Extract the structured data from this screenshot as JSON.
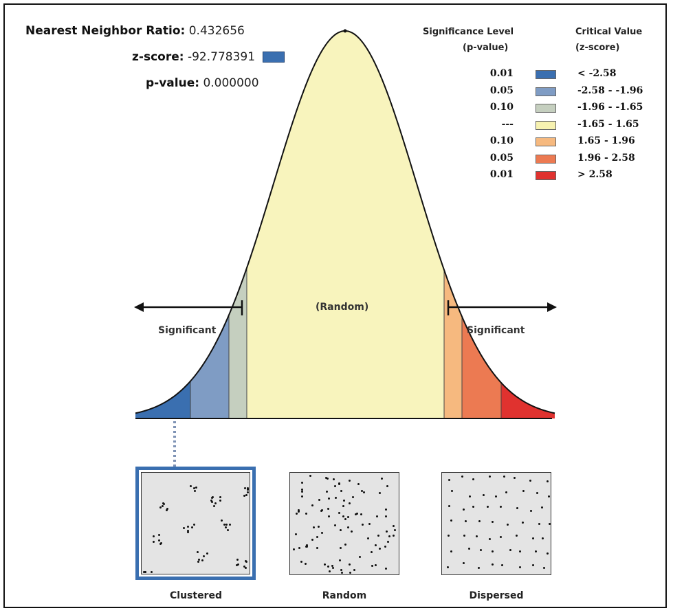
{
  "stats": {
    "nnr_label": "Nearest Neighbor Ratio:",
    "nnr_value": "0.432656",
    "z_label": "z-score:",
    "z_value": "-92.778391",
    "p_label": "p-value:",
    "p_value": "0.000000"
  },
  "legend": {
    "sig_header_1": "Significance Level",
    "sig_header_2": "(p-value)",
    "crit_header_1": "Critical Value",
    "crit_header_2": "(z-score)",
    "rows": [
      {
        "p": "0.01",
        "z": "< -2.58",
        "color": "#3a6fb0"
      },
      {
        "p": "0.05",
        "z": "-2.58 - -1.96",
        "color": "#7f9cc4"
      },
      {
        "p": "0.10",
        "z": "-1.96 - -1.65",
        "color": "#c5cfbf"
      },
      {
        "p": "---",
        "z": "-1.65 - 1.65",
        "color": "#f7f2b0"
      },
      {
        "p": "0.10",
        "z": "1.65 - 1.96",
        "color": "#f6b97f"
      },
      {
        "p": "0.05",
        "z": "1.96 - 2.58",
        "color": "#ec7a52"
      },
      {
        "p": "0.01",
        "z": "> 2.58",
        "color": "#e0322f"
      }
    ]
  },
  "curve": {
    "random_label": "(Random)",
    "left_label": "Significant",
    "right_label": "Significant"
  },
  "panels": {
    "clustered": "Clustered",
    "random": "Random",
    "dispersed": "Dispersed"
  },
  "colors": {
    "selection": "#3a6fb0",
    "center_fill": "#f8f4bd"
  }
}
